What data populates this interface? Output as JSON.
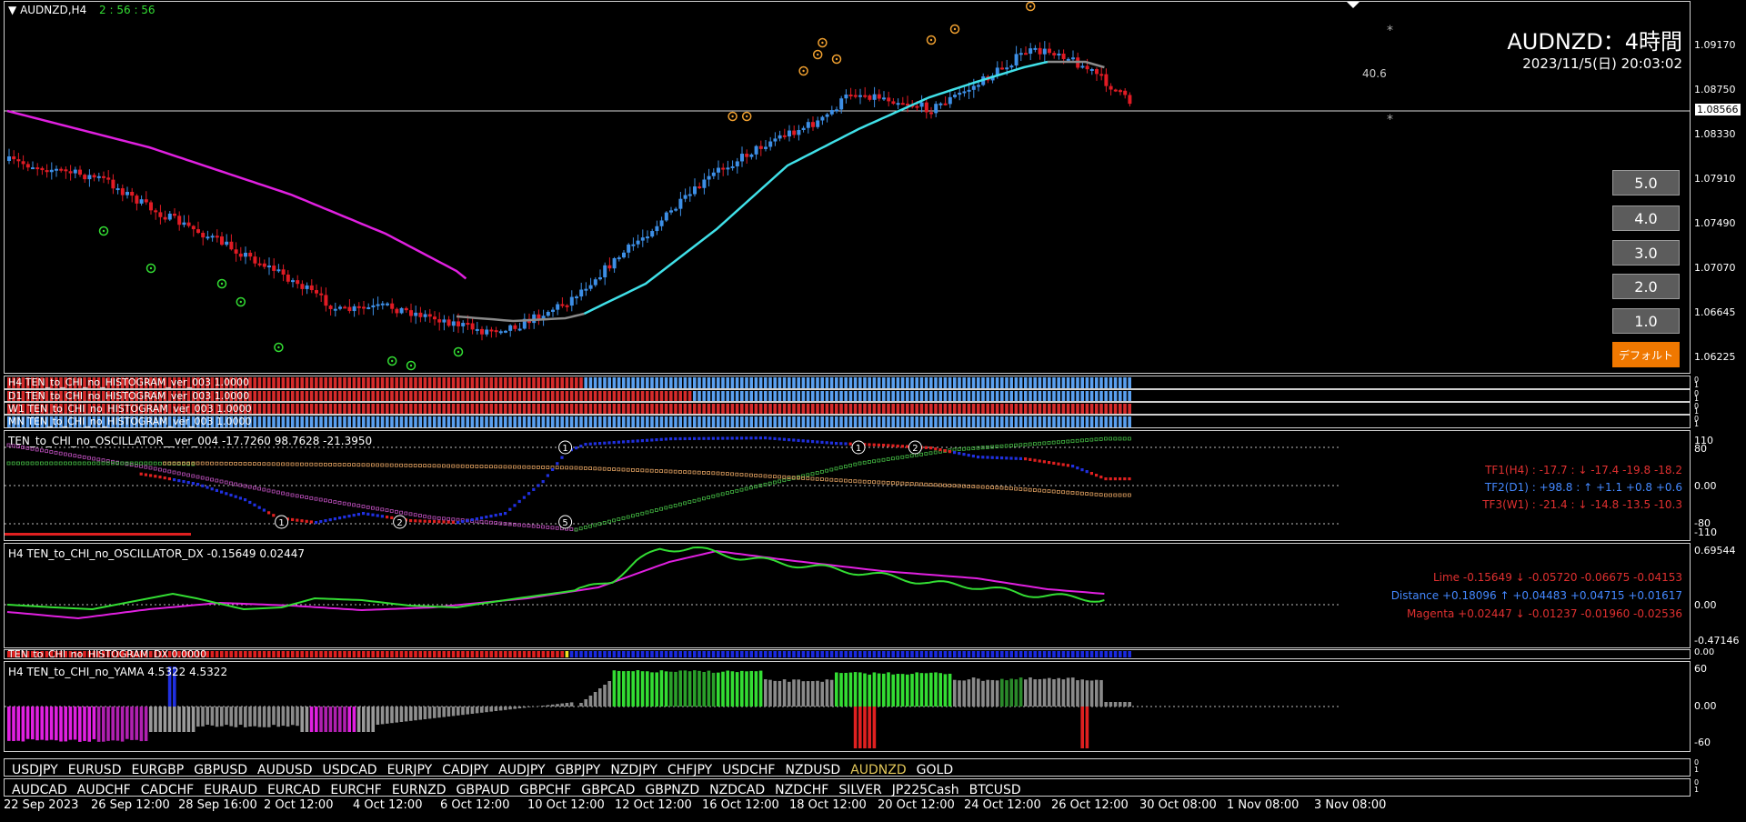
{
  "chart": {
    "title": "AUDNZD,H4",
    "timer": "2 : 56 : 56",
    "symbol_heading": "AUDNZD：4時間",
    "datetime": "2023/11/5(日) 20:03:02",
    "level_value": "40.6",
    "star": "*",
    "current_price": "1.08566"
  },
  "price_axis": [
    "1.09170",
    "1.08750",
    "1.08330",
    "1.07910",
    "1.07490",
    "1.07070",
    "1.06645",
    "1.06225"
  ],
  "buttons": [
    "5.0",
    "4.0",
    "3.0",
    "2.0",
    "1.0"
  ],
  "default_button": "デフォルト",
  "histogram_labels": [
    "H4 TEN_to_CHI_no_HISTOGRAM_ver_003 1.0000",
    "D1 TEN_to_CHI_no_HISTOGRAM_ver_003 1.0000",
    "W1 TEN_to_CHI_no_HISTOGRAM_ver_003 1.0000",
    "MN TEN_to_CHI_no_HISTOGRAM_ver_003 1.0000"
  ],
  "hist_axis": [
    "0",
    "1",
    "0",
    "1",
    "0",
    "1",
    "0",
    "1"
  ],
  "oscillator": {
    "label": "TEN_to_CHI_no_OSCILLATOR__ver_004 -17.7260 98.7628 -21.3950",
    "axis": [
      "110",
      "80",
      "0.00",
      "-80",
      "-110"
    ],
    "tf1": "TF1(H4) : -17.7 : ↓ -17.4 -19.8 -18.2",
    "tf2": "TF2(D1) : +98.8 : ↑ +1.1 +0.8 +0.6",
    "tf3": "TF3(W1) : -21.4 : ↓ -14.8 -13.5 -10.3",
    "markers": [
      "1",
      "1",
      "2",
      "1",
      "2",
      "5"
    ]
  },
  "dx": {
    "label": "H4 TEN_to_CHI_no_OSCILLATOR_DX  -0.15649 0.02447",
    "axis": [
      "0.69544",
      "0.00",
      "-0.47146"
    ],
    "lime": "Lime -0.15649 ↓ -0.05720 -0.06675 -0.04153",
    "distance": "Distance +0.18096 ↑ +0.04483 +0.04715 +0.01617",
    "magenta": "Magenta +0.02447 ↓ -0.01237 -0.01960 -0.02536"
  },
  "hist_dx": {
    "label": "TEN_to_CHI_no_HISTOGRAM_DX 0.0000",
    "axis": "0.00"
  },
  "yama": {
    "label": "H4  TEN_to_CHI_no_YAMA  4.5322 4.5322",
    "axis": [
      "60",
      "0.00",
      "-60"
    ]
  },
  "symbols_row1": [
    "USDJPY",
    "EURUSD",
    "EURGBP",
    "GBPUSD",
    "AUDUSD",
    "USDCAD",
    "EURJPY",
    "CADJPY",
    "AUDJPY",
    "GBPJPY",
    "NZDJPY",
    "CHFJPY",
    "USDCHF",
    "NZDUSD",
    "AUDNZD",
    "GOLD"
  ],
  "symbols_row2": [
    "AUDCAD",
    "AUDCHF",
    "CADCHF",
    "EURAUD",
    "EURCAD",
    "EURCHF",
    "EURNZD",
    "GBPAUD",
    "GBPCHF",
    "GBPCAD",
    "GBPNZD",
    "NZDCAD",
    "NZDCHF",
    "SILVER",
    "JP225Cash",
    "BTCUSD"
  ],
  "active_symbol": "AUDNZD",
  "sym_axis": [
    "0",
    "1"
  ],
  "time_labels": [
    "22 Sep 2023",
    "26 Sep 12:00",
    "28 Sep 16:00",
    "2 Oct 12:00",
    "4 Oct 12:00",
    "6 Oct 12:00",
    "10 Oct 12:00",
    "12 Oct 12:00",
    "16 Oct 12:00",
    "18 Oct 12:00",
    "20 Oct 12:00",
    "24 Oct 12:00",
    "26 Oct 12:00",
    "30 Oct 08:00",
    "1 Nov 08:00",
    "3 Nov 08:00"
  ],
  "colors": {
    "bull": "#3d8fe6",
    "bear": "#e01b24",
    "ma_magenta": "#e020e0",
    "ma_cyan": "#40e0e8",
    "ma_gray": "#8a8a8a",
    "lime": "#33dd33",
    "orange": "#f0a030"
  }
}
